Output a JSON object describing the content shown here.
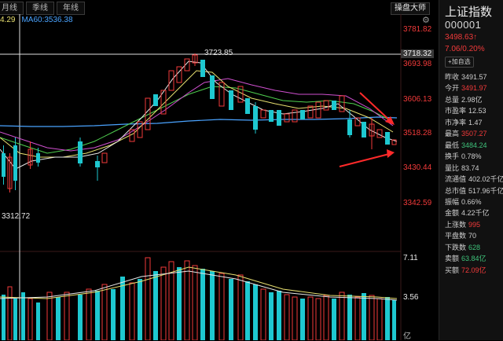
{
  "toolbar": {
    "tabs": [
      "月线",
      "季线",
      "年线"
    ],
    "tool_button": "操盘大师",
    "gear_icon": "gear-icon"
  },
  "indicators": {
    "ma_partial": "4.29",
    "ma60": "MA60:3536.38"
  },
  "price_axis": {
    "labels": [
      "3781.82",
      "3693.98",
      "3606.13",
      "3518.28",
      "3430.44",
      "3342.59"
    ],
    "current_tag": "3718.32"
  },
  "annotations": {
    "high": "3723.85",
    "low": "3312.72"
  },
  "volume_axis": {
    "labels": [
      "7.11",
      "3.56"
    ],
    "unit": "亿"
  },
  "quote": {
    "name": "上证指数",
    "code": "000001",
    "price": "3498.63↑",
    "change": "7.06/0.20%",
    "fav_button": "加自选",
    "rows": [
      {
        "label": "昨收",
        "value": "3491.57",
        "color": "normal"
      },
      {
        "label": "今开",
        "value": "3491.97",
        "color": "red"
      },
      {
        "label": "总量",
        "value": "2.98亿",
        "color": "normal"
      },
      {
        "label": "市盈率",
        "value": "12.53",
        "color": "normal"
      },
      {
        "label": "市净率",
        "value": "1.47",
        "color": "normal"
      },
      {
        "label": "最高",
        "value": "3507.27",
        "color": "red"
      },
      {
        "label": "最低",
        "value": "3484.24",
        "color": "green"
      },
      {
        "label": "换手",
        "value": "0.78%",
        "color": "normal"
      },
      {
        "label": "量比",
        "value": "83.74",
        "color": "normal"
      },
      {
        "label": "流通值",
        "value": "402.02千亿",
        "color": "normal"
      },
      {
        "label": "总市值",
        "value": "517.96千亿",
        "color": "normal"
      },
      {
        "label": "振幅",
        "value": "0.66%",
        "color": "normal"
      },
      {
        "label": "金额",
        "value": "4.22千亿",
        "color": "normal"
      },
      {
        "label": "上涨数",
        "value": "995",
        "color": "red"
      },
      {
        "label": "平盘数",
        "value": "70",
        "color": "normal"
      },
      {
        "label": "下跌数",
        "value": "628",
        "color": "green"
      },
      {
        "label": "卖额",
        "value": "63.84亿",
        "color": "green"
      },
      {
        "label": "买额",
        "value": "72.09亿",
        "color": "red"
      }
    ]
  },
  "colors": {
    "up": "#f23a3a",
    "down": "#1ec8d0",
    "ma5": "#e8e8e8",
    "ma10": "#e8e070",
    "ma20": "#d050d0",
    "ma30": "#50d050",
    "ma60": "#4aa3ff",
    "arrow": "#ff2a2a"
  }
}
